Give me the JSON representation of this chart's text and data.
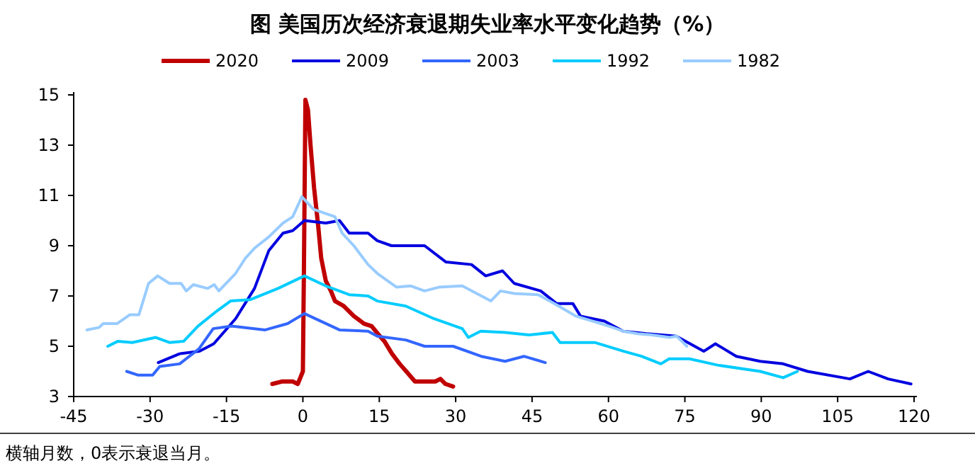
{
  "chart_data": {
    "type": "line",
    "title": "图    美国历次经济衰退期失业率水平变化趋势（%）",
    "annotations": [
      "横轴月数，0表示衰退当月。"
    ],
    "xlim": [
      -45,
      120
    ],
    "xticks": [
      -45,
      -30,
      -15,
      0,
      15,
      30,
      45,
      60,
      75,
      90,
      105,
      120
    ],
    "ylim": [
      3,
      15
    ],
    "yticks": [
      3,
      5,
      7,
      9,
      11,
      13,
      15
    ],
    "grid": false,
    "legend": "top",
    "marker": "none",
    "line_style": "solid",
    "series": [
      {
        "name": "2020",
        "color": "#c00000",
        "x": [
          -6,
          -4,
          -2,
          -1,
          0,
          0.2,
          0.5,
          1,
          1.5,
          2.2,
          3,
          3.6,
          4.5,
          5.5,
          6.3,
          8,
          10,
          12,
          13.5,
          14.7,
          16,
          17.5,
          19,
          20.3,
          22,
          24,
          26,
          27,
          28,
          29.5
        ],
        "values": [
          3.5,
          3.6,
          3.6,
          3.5,
          4,
          8,
          14.8,
          14.4,
          13,
          11.3,
          9.8,
          8.5,
          7.6,
          7.2,
          6.8,
          6.6,
          6.2,
          5.9,
          5.8,
          5.5,
          5.2,
          4.7,
          4.3,
          4,
          3.6,
          3.6,
          3.6,
          3.7,
          3.5,
          3.4
        ]
      },
      {
        "name": "2009",
        "color": "#0000e0",
        "x": [
          -28.4,
          -24.2,
          -20.3,
          -17.5,
          -13.2,
          -9.5,
          -6.7,
          -3.9,
          -2,
          0.3,
          4.5,
          7.2,
          9.1,
          12.8,
          14.6,
          17.4,
          23.9,
          28.1,
          33.1,
          35.9,
          39.2,
          41.5,
          46.7,
          49.8,
          53,
          54.5,
          59.2,
          62.9,
          67.5,
          73.3,
          78.7,
          81,
          85.1,
          89.8,
          94.3,
          99.1,
          107.4,
          111,
          114.9,
          119.4
        ],
        "values": [
          4.35,
          4.7,
          4.8,
          5.1,
          6.1,
          7.3,
          8.8,
          9.5,
          9.6,
          10,
          9.9,
          10,
          9.5,
          9.5,
          9.2,
          9,
          9,
          8.35,
          8.25,
          7.8,
          8,
          7.5,
          7.2,
          6.7,
          6.7,
          6.2,
          6,
          5.6,
          5.5,
          5.4,
          4.8,
          5.1,
          4.6,
          4.4,
          4.3,
          4,
          3.7,
          4,
          3.7,
          3.5
        ]
      },
      {
        "name": "2003",
        "color": "#3366ff",
        "x": [
          -34.6,
          -32.3,
          -29.5,
          -28.1,
          -24.2,
          -20.4,
          -17.6,
          -14,
          -7.4,
          -3,
          0.3,
          7.2,
          12.8,
          14.6,
          20.2,
          23.9,
          29.5,
          35,
          39.7,
          43.4,
          47.6
        ],
        "values": [
          4,
          3.85,
          3.85,
          4.2,
          4.3,
          4.9,
          5.7,
          5.8,
          5.65,
          5.9,
          6.3,
          5.65,
          5.6,
          5.4,
          5.25,
          5,
          5,
          4.6,
          4.4,
          4.6,
          4.35
        ]
      },
      {
        "name": "1992",
        "color": "#00ccff",
        "x": [
          -38.3,
          -36.3,
          -33.5,
          -28.9,
          -26.2,
          -23.4,
          -20.6,
          -16.9,
          -14.2,
          -10.4,
          -4.9,
          0.3,
          4.5,
          9.1,
          12.8,
          14.6,
          20.2,
          25.7,
          31.3,
          32.5,
          34.9,
          39.7,
          44.4,
          49,
          50.5,
          57.3,
          63,
          66.5,
          70.3,
          71.9,
          75.9,
          81.4,
          89.8,
          94.3,
          97.1
        ],
        "values": [
          5,
          5.2,
          5.15,
          5.35,
          5.15,
          5.2,
          5.8,
          6.4,
          6.8,
          6.85,
          7.3,
          7.8,
          7.4,
          7.05,
          7,
          6.8,
          6.6,
          6.1,
          5.7,
          5.35,
          5.6,
          5.55,
          5.45,
          5.55,
          5.15,
          5.15,
          4.8,
          4.6,
          4.3,
          4.5,
          4.5,
          4.25,
          4,
          3.75,
          4
        ]
      },
      {
        "name": "1982",
        "color": "#99ccff",
        "x": [
          -42.4,
          -40,
          -39.2,
          -36.5,
          -34,
          -32.2,
          -30.3,
          -28.5,
          -26.2,
          -23.9,
          -22.9,
          -21.5,
          -18.7,
          -17.4,
          -16.5,
          -13.2,
          -11.3,
          -9.5,
          -6.7,
          -3.9,
          -2,
          -0.2,
          2.1,
          6.3,
          7.7,
          10,
          12.8,
          14.6,
          18.4,
          21.2,
          23.9,
          26.7,
          31.3,
          33.2,
          36.9,
          38.8,
          41.5,
          46.2,
          49.8,
          53.6,
          60.1,
          62.9,
          65.7,
          68.5,
          72,
          73.4,
          75.4
        ],
        "values": [
          5.65,
          5.75,
          5.9,
          5.9,
          6.25,
          6.25,
          7.5,
          7.8,
          7.5,
          7.5,
          7.2,
          7.45,
          7.3,
          7.45,
          7.2,
          7.9,
          8.5,
          8.9,
          9.35,
          9.9,
          10.15,
          10.95,
          10.45,
          10.15,
          9.5,
          9,
          8.25,
          7.9,
          7.35,
          7.4,
          7.2,
          7.35,
          7.4,
          7.2,
          6.8,
          7.2,
          7.1,
          7.05,
          6.65,
          6.2,
          5.8,
          5.6,
          5.5,
          5.45,
          5.35,
          5.4,
          5
        ]
      }
    ]
  }
}
